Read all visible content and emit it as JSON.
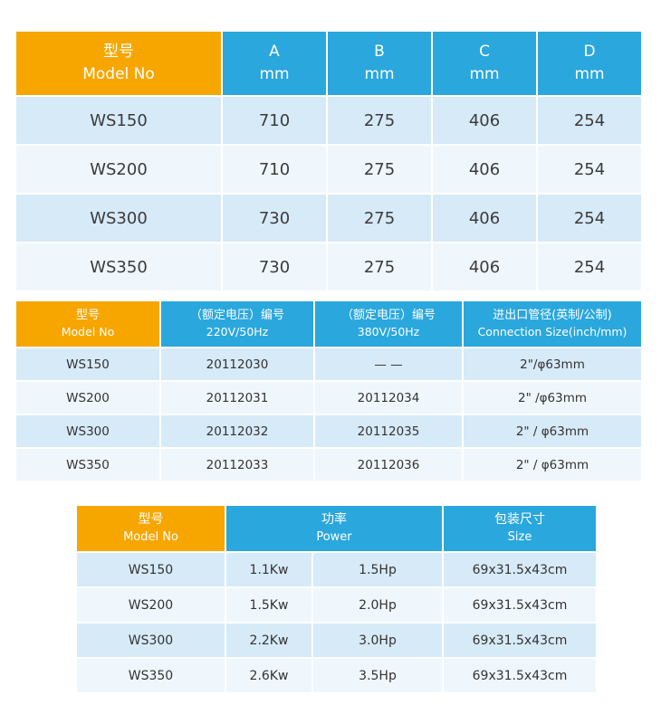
{
  "colors": {
    "header_orange": "#F7A600",
    "header_blue": "#2AA7DD",
    "row_blue": "#D7EAF7",
    "row_light": "#F0F7FC"
  },
  "table1": {
    "header": {
      "model_zh": "型号",
      "model_en": "Model No",
      "cols": [
        {
          "line1": "A",
          "line2": "mm"
        },
        {
          "line1": "B",
          "line2": "mm"
        },
        {
          "line1": "C",
          "line2": "mm"
        },
        {
          "line1": "D",
          "line2": "mm"
        }
      ]
    },
    "rows": [
      {
        "model": "WS150",
        "values": [
          "710",
          "275",
          "406",
          "254"
        ]
      },
      {
        "model": "WS200",
        "values": [
          "710",
          "275",
          "406",
          "254"
        ]
      },
      {
        "model": "WS300",
        "values": [
          "730",
          "275",
          "406",
          "254"
        ]
      },
      {
        "model": "WS350",
        "values": [
          "730",
          "275",
          "406",
          "254"
        ]
      }
    ]
  },
  "table2": {
    "header": {
      "model_zh": "型号",
      "model_en": "Model No",
      "col220_zh": "（额定电压）编号",
      "col220_en": "220V/50Hz",
      "col380_zh": "（额定电压）编号",
      "col380_en": "380V/50Hz",
      "conn_zh": "进出口管径(英制/公制)",
      "conn_en": "Connection Size(inch/mm)"
    },
    "rows": [
      {
        "model": "WS150",
        "code220": "20112030",
        "code380": "— —",
        "conn": "2\"/φ63mm"
      },
      {
        "model": "WS200",
        "code220": "20112031",
        "code380": "20112034",
        "conn": "2\" /φ63mm"
      },
      {
        "model": "WS300",
        "code220": "20112032",
        "code380": "20112035",
        "conn": "2\" / φ63mm"
      },
      {
        "model": "WS350",
        "code220": "20112033",
        "code380": "20112036",
        "conn": "2\" / φ63mm"
      }
    ]
  },
  "table3": {
    "header": {
      "model_zh": "型号",
      "model_en": "Model No",
      "power_zh": "功率",
      "power_en": "Power",
      "size_zh": "包装尺寸",
      "size_en": "Size"
    },
    "rows": [
      {
        "model": "WS150",
        "kw": "1.1Kw",
        "hp": "1.5Hp",
        "size": "69x31.5x43cm"
      },
      {
        "model": "WS200",
        "kw": "1.5Kw",
        "hp": "2.0Hp",
        "size": "69x31.5x43cm"
      },
      {
        "model": "WS300",
        "kw": "2.2Kw",
        "hp": "3.0Hp",
        "size": "69x31.5x43cm"
      },
      {
        "model": "WS350",
        "kw": "2.6Kw",
        "hp": "3.5Hp",
        "size": "69x31.5x43cm"
      }
    ]
  }
}
